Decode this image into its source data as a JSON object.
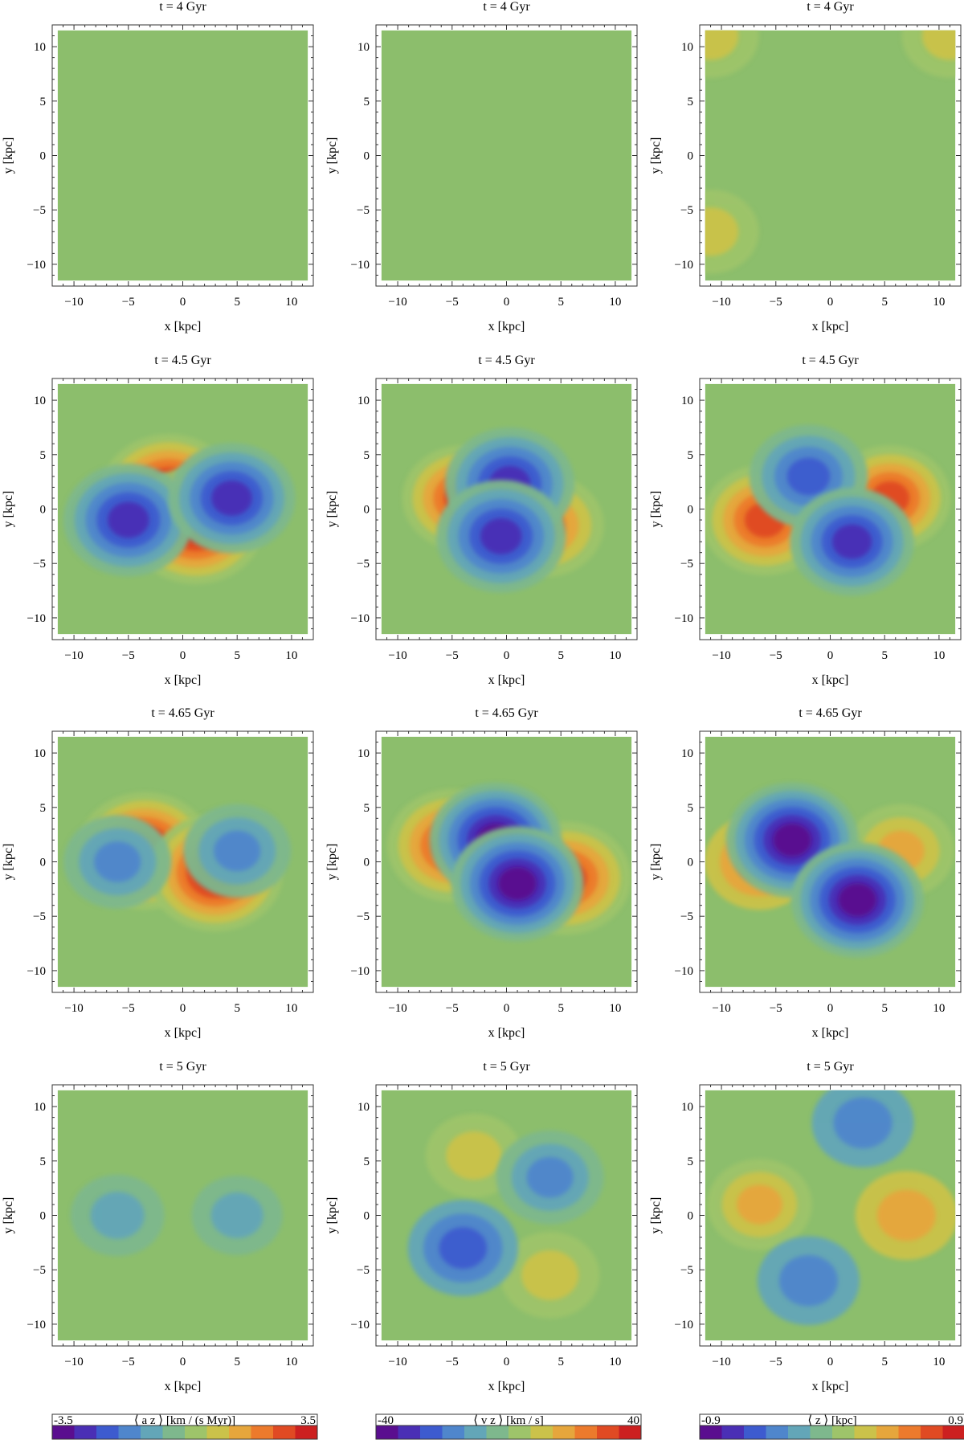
{
  "figure": {
    "rows": [
      {
        "title": "t = 4 Gyr"
      },
      {
        "title": "t = 4.5 Gyr"
      },
      {
        "title": "t = 4.65 Gyr"
      },
      {
        "title": "t = 5 Gyr"
      }
    ],
    "columns": [
      {
        "quantity": "a_z",
        "colorbar_label": "⟨ a z ⟩ [km / (s Myr)]",
        "min_label": "-3.5",
        "max_label": "3.5"
      },
      {
        "quantity": "v_z",
        "colorbar_label": "⟨ v z ⟩ [km / s]",
        "min_label": "-40",
        "max_label": "40"
      },
      {
        "quantity": "z",
        "colorbar_label": "⟨ z ⟩ [kpc]",
        "min_label": "-0.9",
        "max_label": "0.9"
      }
    ],
    "colormap": [
      "#5a0e8f",
      "#4a2fb5",
      "#3d5bcf",
      "#4f86cc",
      "#63a6b8",
      "#7eb88d",
      "#9ec46a",
      "#cbc24a",
      "#e6a63c",
      "#ec7a2c",
      "#e04a23",
      "#cc2020"
    ]
  },
  "chart_data": [
    {
      "type": "heatmap",
      "layout": "4 rows × 3 columns of density/contour maps",
      "xlabel": "x [kpc]",
      "ylabel": "y [kpc]",
      "xlim": [
        -12,
        12
      ],
      "ylim": [
        -12,
        12
      ],
      "xticks": [
        -10,
        -5,
        0,
        5,
        10
      ],
      "yticks": [
        -10,
        -5,
        0,
        5,
        10
      ],
      "times": [
        "t = 4 Gyr",
        "t = 4.5 Gyr",
        "t = 4.65 Gyr",
        "t = 5 Gyr"
      ],
      "colorbars": [
        {
          "label": "⟨ a z ⟩ [km / (s Myr)]",
          "range": [
            -3.5,
            3.5
          ]
        },
        {
          "label": "⟨ v z ⟩ [km / s]",
          "range": [
            -40,
            40
          ]
        },
        {
          "label": "⟨ z ⟩ [kpc]",
          "range": [
            -0.9,
            0.9
          ]
        }
      ],
      "features": [
        [
          {
            "blobs": []
          },
          {
            "blobs": []
          },
          {
            "blobs": [
              {
                "x": -11,
                "y": 11,
                "v": 0.3
              },
              {
                "x": 11,
                "y": 11,
                "v": 0.3
              },
              {
                "x": -11,
                "y": -7,
                "v": 0.3
              }
            ]
          }
        ],
        [
          {
            "blobs": [
              {
                "x": -1.3,
                "y": 1.5,
                "v": 1.0
              },
              {
                "x": 1.2,
                "y": -1.5,
                "v": 1.0
              },
              {
                "x": -5,
                "y": -1,
                "v": -0.9
              },
              {
                "x": 4.5,
                "y": 1,
                "v": -0.85
              }
            ]
          },
          {
            "blobs": [
              {
                "x": -4,
                "y": 1,
                "v": 0.75
              },
              {
                "x": 3.5,
                "y": -1.5,
                "v": 0.7
              },
              {
                "x": 0.3,
                "y": 2.3,
                "v": -0.9
              },
              {
                "x": -0.5,
                "y": -2.5,
                "v": -0.9
              }
            ]
          },
          {
            "blobs": [
              {
                "x": -6,
                "y": -1,
                "v": 0.85
              },
              {
                "x": 5.5,
                "y": 1,
                "v": 0.75
              },
              {
                "x": -2,
                "y": 3,
                "v": -0.7
              },
              {
                "x": 2,
                "y": -3,
                "v": -0.8
              }
            ]
          }
        ],
        [
          {
            "blobs": [
              {
                "x": -3.5,
                "y": 1,
                "v": 1.0
              },
              {
                "x": 3,
                "y": -1,
                "v": 1.0
              },
              {
                "x": -6,
                "y": 0,
                "v": -0.5
              },
              {
                "x": 5,
                "y": 1,
                "v": -0.5
              }
            ]
          },
          {
            "blobs": [
              {
                "x": -5,
                "y": 1.5,
                "v": 0.9
              },
              {
                "x": 5.5,
                "y": -1.5,
                "v": 0.9
              },
              {
                "x": -1,
                "y": 2,
                "v": -0.95
              },
              {
                "x": 1,
                "y": -2,
                "v": -0.95
              }
            ]
          },
          {
            "blobs": [
              {
                "x": -6.5,
                "y": 0,
                "v": 0.55
              },
              {
                "x": 6.5,
                "y": 1,
                "v": 0.5
              },
              {
                "x": -3.5,
                "y": 2,
                "v": -0.95
              },
              {
                "x": 2.5,
                "y": -3.5,
                "v": -0.95
              }
            ]
          }
        ],
        [
          {
            "blobs": [
              {
                "x": -6,
                "y": 0,
                "v": -0.25
              },
              {
                "x": 5,
                "y": 0,
                "v": -0.2
              }
            ]
          },
          {
            "blobs": [
              {
                "x": -3,
                "y": 5.5,
                "v": 0.3
              },
              {
                "x": 4,
                "y": -5.5,
                "v": 0.35
              },
              {
                "x": -4,
                "y": -3,
                "v": -0.55
              },
              {
                "x": 4,
                "y": 3.5,
                "v": -0.5
              }
            ]
          },
          {
            "blobs": [
              {
                "x": -6.5,
                "y": 1,
                "v": 0.45
              },
              {
                "x": 7,
                "y": 0,
                "v": 0.4
              },
              {
                "x": 3,
                "y": 8.5,
                "v": -0.4
              },
              {
                "x": -2,
                "y": -6,
                "v": -0.4
              }
            ]
          }
        ]
      ]
    }
  ]
}
